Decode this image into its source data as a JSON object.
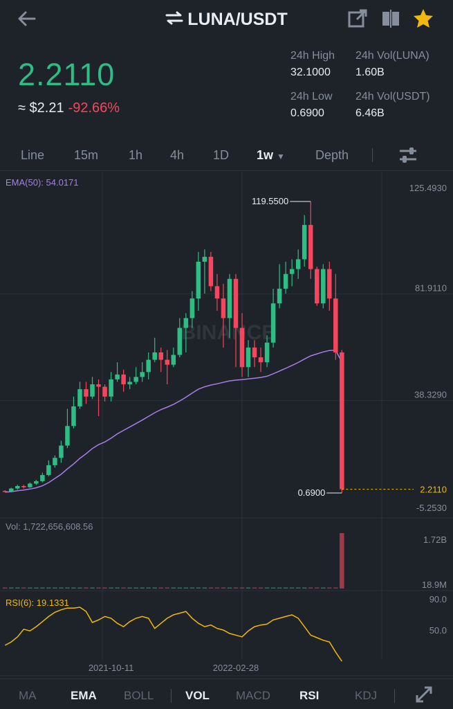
{
  "header": {
    "pair": "LUNA/USDT"
  },
  "price": {
    "last": "2.2110",
    "usd": "≈ $2.21",
    "change": "-92.66%"
  },
  "stats": {
    "high_label": "24h High",
    "high": "32.1000",
    "vol_luna_label": "24h Vol(LUNA)",
    "vol_luna": "1.60B",
    "low_label": "24h Low",
    "low": "0.6900",
    "vol_usdt_label": "24h Vol(USDT)",
    "vol_usdt": "6.46B"
  },
  "intervals": [
    "Line",
    "15m",
    "1h",
    "4h",
    "1D",
    "1w",
    "Depth"
  ],
  "selected_interval": "1w",
  "chart_data": {
    "type": "candlestick",
    "ema_label": "EMA(50): 54.0171",
    "y_ticks": [
      "125.4930",
      "81.9110",
      "38.3290",
      "-5.2530"
    ],
    "max_label": "119.5500",
    "min_label": "0.6900",
    "last_price_label": "2.2110",
    "watermark": "BINANCE",
    "ylim": [
      -5.253,
      125.493
    ],
    "candles": [
      [
        1.5,
        1.2,
        1.8,
        1.0
      ],
      [
        1.2,
        2.5,
        2.8,
        1.0
      ],
      [
        2.5,
        3.5,
        4.0,
        2.0
      ],
      [
        3.5,
        3.0,
        4.0,
        2.5
      ],
      [
        3.0,
        4.5,
        5.0,
        2.8
      ],
      [
        4.5,
        5.5,
        6.0,
        4.0
      ],
      [
        5.5,
        8.0,
        9.0,
        5.0
      ],
      [
        8.0,
        12.0,
        14.0,
        7.5
      ],
      [
        12.0,
        15.0,
        16.0,
        11.0
      ],
      [
        15.0,
        20.0,
        22.0,
        13.0
      ],
      [
        20.0,
        28.0,
        35.0,
        19.0
      ],
      [
        28.0,
        36.0,
        40.0,
        27.0
      ],
      [
        36.0,
        43.0,
        46.0,
        35.0
      ],
      [
        43.0,
        40.0,
        46.0,
        37.0
      ],
      [
        40.0,
        45.0,
        48.0,
        39.0
      ],
      [
        45.0,
        44.0,
        47.0,
        32.0
      ],
      [
        44.0,
        40.0,
        45.0,
        38.0
      ],
      [
        40.0,
        47.0,
        50.0,
        38.0
      ],
      [
        47.0,
        49.0,
        54.0,
        46.0
      ],
      [
        49.0,
        45.0,
        51.0,
        42.0
      ],
      [
        45.0,
        46.0,
        48.0,
        43.0
      ],
      [
        46.0,
        48.0,
        52.0,
        45.0
      ],
      [
        48.0,
        50.0,
        54.0,
        46.0
      ],
      [
        50.0,
        55.0,
        58.0,
        47.0
      ],
      [
        55.0,
        58.0,
        64.0,
        54.0
      ],
      [
        58.0,
        55.0,
        60.0,
        50.0
      ],
      [
        55.0,
        53.0,
        59.0,
        45.0
      ],
      [
        53.0,
        57.0,
        60.0,
        52.0
      ],
      [
        57.0,
        68.0,
        72.0,
        56.0
      ],
      [
        68.0,
        72.0,
        74.0,
        58.0
      ],
      [
        72.0,
        80.0,
        83.0,
        68.0
      ],
      [
        80.0,
        95.0,
        99.0,
        75.0
      ],
      [
        95.0,
        97.0,
        100.0,
        82.0
      ],
      [
        97.0,
        85.0,
        99.0,
        83.0
      ],
      [
        85.0,
        80.0,
        90.0,
        75.0
      ],
      [
        80.0,
        72.0,
        86.0,
        60.0
      ],
      [
        72.0,
        88.0,
        90.0,
        64.0
      ],
      [
        88.0,
        68.0,
        90.0,
        52.0
      ],
      [
        68.0,
        52.0,
        74.0,
        48.0
      ],
      [
        52.0,
        60.0,
        63.0,
        48.0
      ],
      [
        60.0,
        56.0,
        63.0,
        52.0
      ],
      [
        56.0,
        54.0,
        60.0,
        50.0
      ],
      [
        54.0,
        62.0,
        65.0,
        52.0
      ],
      [
        62.0,
        78.0,
        84.0,
        60.0
      ],
      [
        78.0,
        84.0,
        94.0,
        76.0
      ],
      [
        84.0,
        90.0,
        95.0,
        82.0
      ],
      [
        90.0,
        92.0,
        96.0,
        85.0
      ],
      [
        92.0,
        96.0,
        100.0,
        88.0
      ],
      [
        96.0,
        110.0,
        114.0,
        93.0
      ],
      [
        110.0,
        92.0,
        119.55,
        88.0
      ],
      [
        92.0,
        78.0,
        93.0,
        77.0
      ],
      [
        78.0,
        92.0,
        94.0,
        76.0
      ],
      [
        92.0,
        80.0,
        95.0,
        75.0
      ],
      [
        80.0,
        58.0,
        90.0,
        55.0
      ],
      [
        58.0,
        2.211,
        59.0,
        0.69
      ]
    ],
    "ema50": [
      1.0,
      1.2,
      1.6,
      1.9,
      2.3,
      2.8,
      3.6,
      4.9,
      6.6,
      8.3,
      10.5,
      12.5,
      14.8,
      16.7,
      18.8,
      20.4,
      21.5,
      23.0,
      24.8,
      26.2,
      27.6,
      29.0,
      30.4,
      31.9,
      33.4,
      34.7,
      35.7,
      36.8,
      38.2,
      39.7,
      41.4,
      43.0,
      44.0,
      44.7,
      45.2,
      45.8,
      46.4,
      46.7,
      46.9,
      47.2,
      47.5,
      47.8,
      48.3,
      49.3,
      50.4,
      51.5,
      52.7,
      53.9,
      55.3,
      56.6,
      57.4,
      58.2,
      58.8,
      58.9,
      54.0171
    ],
    "volume_label": "Vol: 1,722,656,608.56",
    "volume_ticks": [
      "1.72B",
      "18.9M"
    ],
    "volume": [
      2,
      2,
      2,
      2,
      2,
      2,
      3,
      3,
      3,
      3,
      4,
      4,
      5,
      4,
      4,
      4,
      4,
      4,
      4,
      4,
      4,
      4,
      4,
      5,
      5,
      5,
      5,
      5,
      6,
      6,
      6,
      7,
      7,
      6,
      6,
      6,
      6,
      7,
      7,
      6,
      6,
      6,
      6,
      6,
      7,
      6,
      6,
      6,
      6,
      7,
      6,
      6,
      6,
      8,
      1722
    ],
    "rsi_label": "RSI(6): 19.1331",
    "rsi_ticks": [
      "90.0",
      "50.0"
    ],
    "rsi": [
      38,
      42,
      48,
      57,
      55,
      60,
      66,
      72,
      77,
      80,
      82,
      82,
      83,
      78,
      65,
      68,
      72,
      70,
      64,
      60,
      66,
      70,
      72,
      70,
      58,
      64,
      70,
      74,
      76,
      78,
      70,
      64,
      60,
      62,
      58,
      56,
      52,
      50,
      48,
      55,
      60,
      62,
      63,
      68,
      70,
      72,
      74,
      70,
      60,
      50,
      47,
      44,
      42,
      30,
      19.13
    ],
    "x_ticks": [
      {
        "label": "2021-10-11",
        "index": 17
      },
      {
        "label": "2022-02-28",
        "index": 37
      }
    ]
  },
  "indicators": [
    "MA",
    "EMA",
    "BOLL",
    "VOL",
    "MACD",
    "RSI",
    "KDJ"
  ],
  "indicators_on": [
    "EMA",
    "VOL",
    "RSI"
  ],
  "colors": {
    "up": "#2ebd85",
    "down": "#f6465d",
    "ema": "#a87eea",
    "rsi": "#f0b90b",
    "background": "#1e2329"
  },
  "icons": [
    "back-arrow-icon",
    "swap-icon",
    "share-icon",
    "compare-icon",
    "favorite-star-icon",
    "settings-sliders-icon",
    "fullscreen-icon"
  ]
}
